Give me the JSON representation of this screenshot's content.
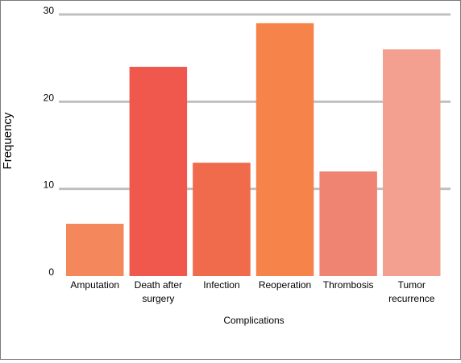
{
  "chart_data": {
    "type": "bar",
    "categories": [
      "Amputation",
      "Death after surgery",
      "Infection",
      "Reoperation",
      "Thrombosis",
      "Tumor recurrence"
    ],
    "category_lines": [
      [
        "Amputation"
      ],
      [
        "Death after",
        "surgery"
      ],
      [
        "Infection"
      ],
      [
        "Reoperation"
      ],
      [
        "Thrombosis"
      ],
      [
        "Tumor",
        "recurrence"
      ]
    ],
    "values": [
      6,
      24,
      13,
      29,
      12,
      26
    ],
    "colors": [
      "#f4875c",
      "#f0584e",
      "#f06a4c",
      "#f5834a",
      "#f08472",
      "#f4a090"
    ],
    "xlabel": "Complications",
    "ylabel": "Frequency",
    "ylim": [
      0,
      30
    ],
    "yticks": [
      0,
      10,
      20,
      30
    ],
    "grid": true,
    "grid_color": "#c0c0c0"
  }
}
